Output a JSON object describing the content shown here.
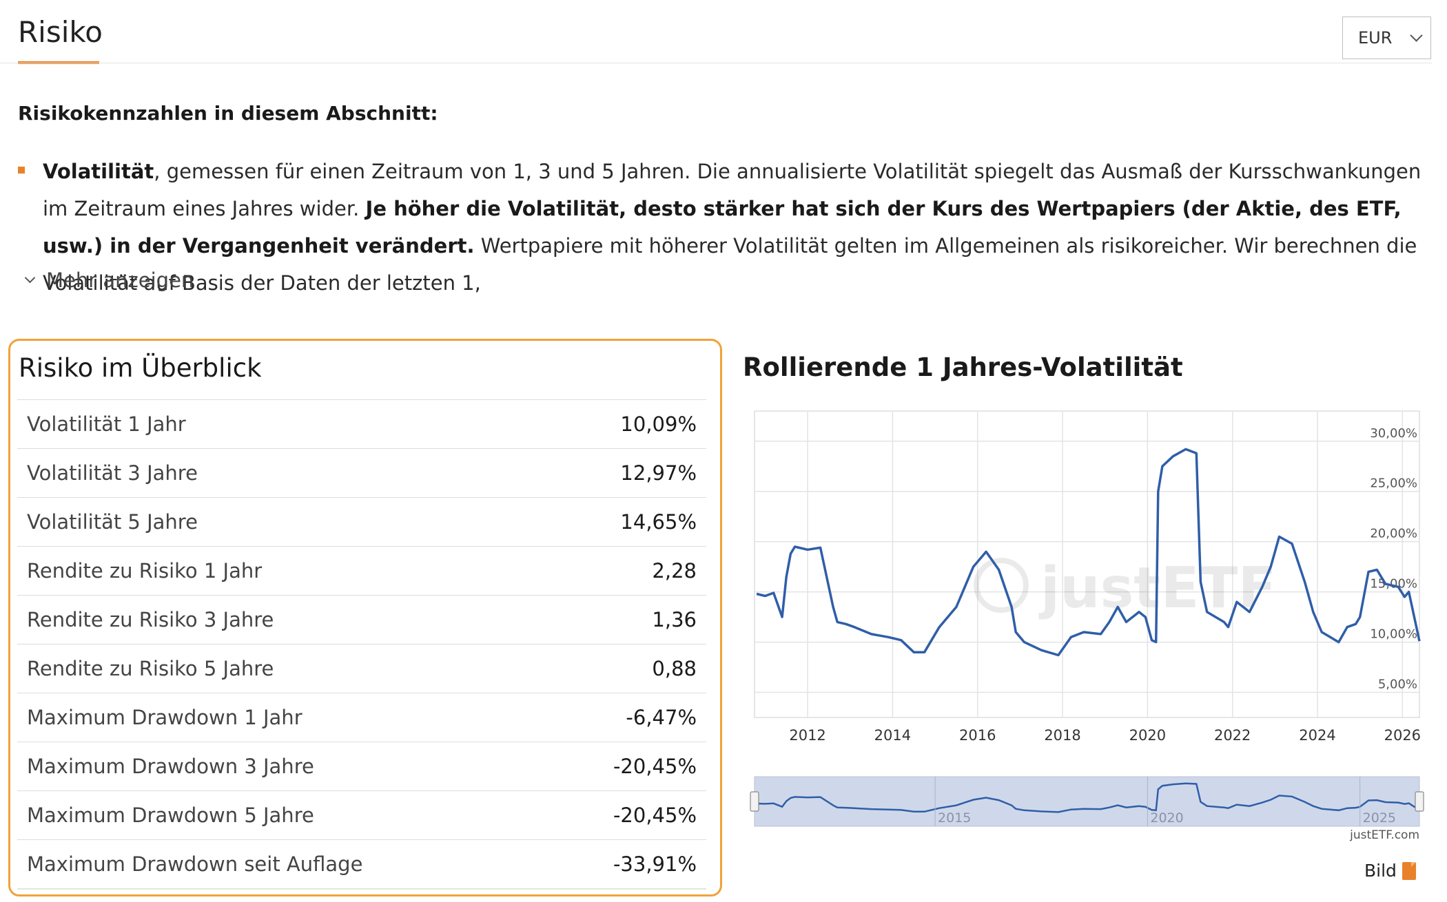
{
  "header": {
    "title": "Risiko",
    "currency": "EUR"
  },
  "section": {
    "heading": "Risikokennzahlen in diesem Abschnitt:",
    "bullet_bold1": "Volatilität",
    "bullet_text1": ", gemessen für einen Zeitraum von 1, 3 und 5 Jahren. Die annualisierte Volatilität spiegelt das Ausmaß der Kursschwankungen im Zeitraum eines Jahres wider. ",
    "bullet_bold2": "Je höher die Volatilität, desto stärker hat sich der Kurs des Wertpapiers (der Aktie, des ETF, usw.) in der Vergangenheit verändert.",
    "bullet_text2": " Wertpapiere mit höherer Volatilität gelten im Allgemeinen als risikoreicher. Wir berechnen die Volatilität auf Basis der Daten der letzten 1,",
    "more_label": "Mehr anzeigen"
  },
  "overview": {
    "title": "Risiko im Überblick",
    "rows": [
      {
        "label": "Volatilität 1 Jahr",
        "value": "10,09%"
      },
      {
        "label": "Volatilität 3 Jahre",
        "value": "12,97%"
      },
      {
        "label": "Volatilität 5 Jahre",
        "value": "14,65%"
      },
      {
        "label": "Rendite zu Risiko 1 Jahr",
        "value": "2,28"
      },
      {
        "label": "Rendite zu Risiko 3 Jahre",
        "value": "1,36"
      },
      {
        "label": "Rendite zu Risiko 5 Jahre",
        "value": "0,88"
      },
      {
        "label": "Maximum Drawdown 1 Jahr",
        "value": "-6,47%"
      },
      {
        "label": "Maximum Drawdown 3 Jahre",
        "value": "-20,45%"
      },
      {
        "label": "Maximum Drawdown 5 Jahre",
        "value": "-20,45%"
      },
      {
        "label": "Maximum Drawdown seit Auflage",
        "value": "-33,91%"
      }
    ]
  },
  "chart": {
    "watermark": "justETF",
    "credit": "justETF.com",
    "navigator_labels": [
      "2015",
      "2020",
      "2025"
    ],
    "bild_label": "Bild"
  },
  "chart_data": {
    "type": "line",
    "title": "Rollierende 1 Jahres-Volatilität",
    "xlabel": "",
    "ylabel": "",
    "x_ticks": [
      "2012",
      "2014",
      "2016",
      "2018",
      "2020",
      "2022",
      "2024",
      "2026"
    ],
    "y_ticks": [
      "5,00%",
      "10,00%",
      "15,00%",
      "20,00%",
      "25,00%",
      "30,00%"
    ],
    "xlim": [
      2010.75,
      2026.4
    ],
    "ylim": [
      2.5,
      33
    ],
    "grid": true,
    "line_color": "#2f5ea8",
    "series": [
      {
        "x": [
          2010.8,
          2011.0,
          2011.2,
          2011.4,
          2011.5,
          2011.6,
          2011.7,
          2012.0,
          2012.3,
          2012.6,
          2012.7,
          2012.9,
          2013.1,
          2013.5,
          2013.9,
          2014.2,
          2014.5,
          2014.75,
          2015.1,
          2015.5,
          2015.9,
          2016.1,
          2016.2,
          2016.5,
          2016.8,
          2016.9,
          2017.1,
          2017.5,
          2017.9,
          2018.2,
          2018.5,
          2018.9,
          2019.1,
          2019.3,
          2019.5,
          2019.8,
          2019.95,
          2020.1,
          2020.2,
          2020.25,
          2020.35,
          2020.6,
          2020.9,
          2021.15,
          2021.25,
          2021.4,
          2021.8,
          2021.9,
          2022.1,
          2022.4,
          2022.7,
          2022.9,
          2023.1,
          2023.4,
          2023.7,
          2023.9,
          2024.1,
          2024.3,
          2024.5,
          2024.7,
          2024.9,
          2025.0,
          2025.2,
          2025.4,
          2025.6,
          2025.9,
          2026.05,
          2026.15,
          2026.4
        ],
        "y": [
          14.8,
          14.6,
          14.9,
          12.5,
          16.5,
          18.8,
          19.5,
          19.2,
          19.4,
          13.5,
          12.0,
          11.8,
          11.5,
          10.8,
          10.5,
          10.2,
          9.0,
          9.0,
          11.5,
          13.5,
          17.5,
          18.5,
          19.0,
          17.2,
          13.5,
          11.0,
          10.0,
          9.2,
          8.7,
          10.5,
          11.0,
          10.8,
          12.0,
          13.5,
          12.0,
          13.0,
          12.5,
          10.2,
          10.0,
          25.0,
          27.5,
          28.5,
          29.2,
          28.8,
          16.0,
          13.0,
          12.0,
          11.5,
          14.0,
          13.0,
          15.5,
          17.5,
          20.5,
          19.8,
          16.0,
          13.0,
          11.0,
          10.5,
          10.0,
          11.5,
          11.8,
          12.5,
          17.0,
          17.2,
          15.8,
          15.5,
          14.5,
          15.0,
          10.1
        ]
      }
    ]
  }
}
